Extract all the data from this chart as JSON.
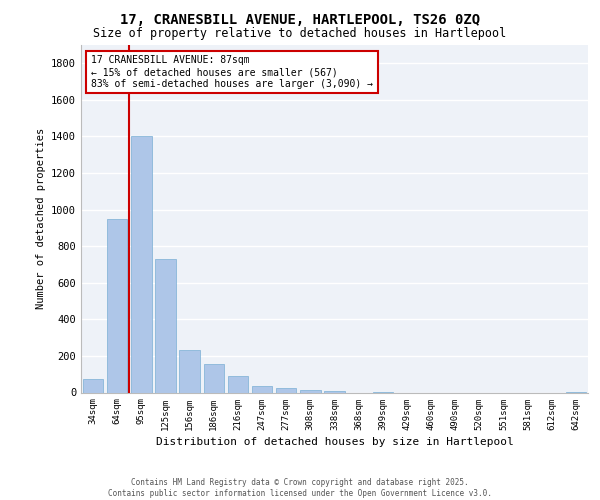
{
  "title_line1": "17, CRANESBILL AVENUE, HARTLEPOOL, TS26 0ZQ",
  "title_line2": "Size of property relative to detached houses in Hartlepool",
  "xlabel": "Distribution of detached houses by size in Hartlepool",
  "ylabel": "Number of detached properties",
  "categories": [
    "34sqm",
    "64sqm",
    "95sqm",
    "125sqm",
    "156sqm",
    "186sqm",
    "216sqm",
    "247sqm",
    "277sqm",
    "308sqm",
    "338sqm",
    "368sqm",
    "399sqm",
    "429sqm",
    "460sqm",
    "490sqm",
    "520sqm",
    "551sqm",
    "581sqm",
    "612sqm",
    "642sqm"
  ],
  "values": [
    75,
    950,
    1400,
    730,
    230,
    155,
    90,
    35,
    25,
    15,
    10,
    0,
    5,
    0,
    0,
    0,
    0,
    0,
    0,
    0,
    5
  ],
  "bar_color": "#aec6e8",
  "bar_edge_color": "#7aafd4",
  "vline_color": "#cc0000",
  "annotation_text": "17 CRANESBILL AVENUE: 87sqm\n← 15% of detached houses are smaller (567)\n83% of semi-detached houses are larger (3,090) →",
  "annotation_box_color": "#ffffff",
  "annotation_box_edge": "#cc0000",
  "ylim": [
    0,
    1900
  ],
  "yticks": [
    0,
    200,
    400,
    600,
    800,
    1000,
    1200,
    1400,
    1600,
    1800
  ],
  "background_color": "#eef2f8",
  "grid_color": "#ffffff",
  "footer_line1": "Contains HM Land Registry data © Crown copyright and database right 2025.",
  "footer_line2": "Contains public sector information licensed under the Open Government Licence v3.0."
}
